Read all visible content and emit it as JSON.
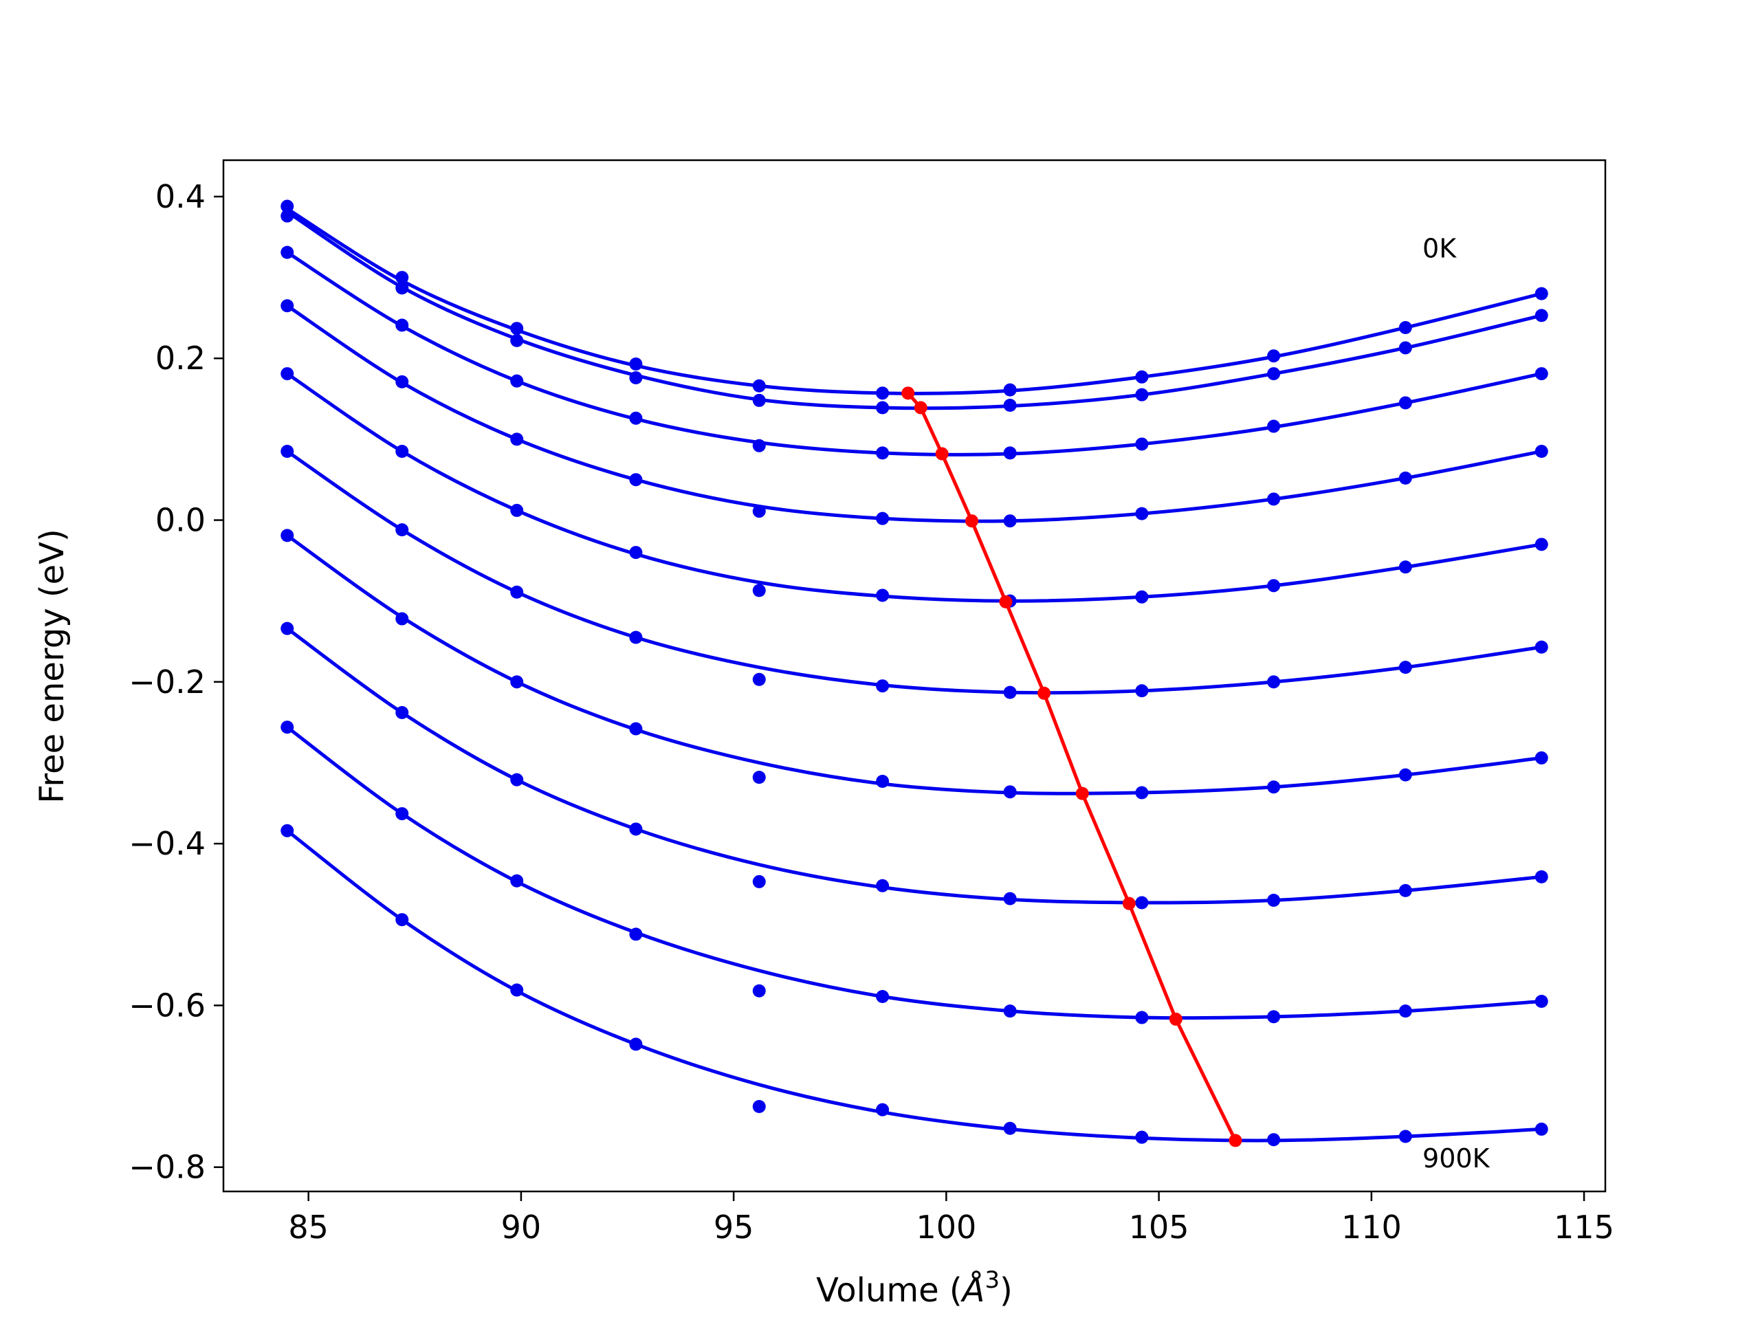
{
  "chart_data": {
    "type": "line",
    "title": "",
    "xlabel": "Volume (Å³)",
    "xlabel_parts": {
      "text": "Volume (",
      "italic": "Å",
      "sup": "3",
      "close": ")"
    },
    "ylabel": "Free energy (eV)",
    "xlim": [
      83,
      115.5
    ],
    "ylim": [
      -0.83,
      0.445
    ],
    "xticks": [
      85,
      90,
      95,
      100,
      105,
      110,
      115
    ],
    "xtick_labels": [
      "85",
      "90",
      "95",
      "100",
      "105",
      "110",
      "115"
    ],
    "yticks": [
      -0.8,
      -0.6,
      -0.4,
      -0.2,
      0.0,
      0.2,
      0.4
    ],
    "ytick_labels": [
      "−0.8",
      "−0.6",
      "−0.4",
      "−0.2",
      "0.0",
      "0.2",
      "0.4"
    ],
    "grid": false,
    "annotations": [
      {
        "text": "0K",
        "x": 111.2,
        "y": 0.335
      },
      {
        "text": "900K",
        "x": 111.2,
        "y": -0.79
      }
    ],
    "x": [
      84.5,
      87.2,
      89.9,
      92.7,
      95.6,
      98.5,
      101.5,
      104.6,
      107.7,
      110.8,
      114.0
    ],
    "series_color": "#0000ee",
    "series": [
      {
        "values": [
          0.388,
          0.3,
          0.237,
          0.193,
          0.166,
          0.157,
          0.161,
          0.177,
          0.203,
          0.238,
          0.28
        ],
        "fit": [
          0.385,
          0.296,
          0.235,
          0.191,
          0.166,
          0.157,
          0.16,
          0.177,
          0.202,
          0.238,
          0.28
        ]
      },
      {
        "values": [
          0.376,
          0.287,
          0.222,
          0.176,
          0.148,
          0.139,
          0.142,
          0.155,
          0.181,
          0.213,
          0.253
        ],
        "fit": [
          0.381,
          0.288,
          0.224,
          0.179,
          0.149,
          0.139,
          0.141,
          0.155,
          0.181,
          0.213,
          0.253
        ]
      },
      {
        "values": [
          0.331,
          0.241,
          0.172,
          0.126,
          0.092,
          0.083,
          0.083,
          0.094,
          0.116,
          0.145,
          0.181
        ],
        "fit": [
          0.331,
          0.24,
          0.172,
          0.125,
          0.096,
          0.083,
          0.082,
          0.094,
          0.115,
          0.145,
          0.181
        ]
      },
      {
        "values": [
          0.265,
          0.171,
          0.1,
          0.05,
          0.011,
          0.002,
          -0.001,
          0.008,
          0.026,
          0.052,
          0.085
        ],
        "fit": [
          0.265,
          0.17,
          0.1,
          0.05,
          0.017,
          0.002,
          -0.001,
          0.008,
          0.026,
          0.052,
          0.085
        ]
      },
      {
        "values": [
          0.181,
          0.085,
          0.012,
          -0.04,
          -0.087,
          -0.093,
          -0.1,
          -0.095,
          -0.081,
          -0.058,
          -0.03
        ],
        "fit": [
          0.181,
          0.085,
          0.012,
          -0.042,
          -0.077,
          -0.094,
          -0.1,
          -0.095,
          -0.081,
          -0.058,
          -0.03
        ]
      },
      {
        "values": [
          0.085,
          -0.012,
          -0.089,
          -0.145,
          -0.197,
          -0.205,
          -0.213,
          -0.211,
          -0.2,
          -0.182,
          -0.157
        ],
        "fit": [
          0.085,
          -0.012,
          -0.089,
          -0.145,
          -0.182,
          -0.204,
          -0.213,
          -0.211,
          -0.2,
          -0.182,
          -0.157
        ]
      },
      {
        "values": [
          -0.019,
          -0.122,
          -0.2,
          -0.258,
          -0.318,
          -0.323,
          -0.336,
          -0.337,
          -0.33,
          -0.315,
          -0.294
        ],
        "fit": [
          -0.019,
          -0.12,
          -0.2,
          -0.259,
          -0.3,
          -0.326,
          -0.337,
          -0.337,
          -0.33,
          -0.315,
          -0.294
        ]
      },
      {
        "values": [
          -0.134,
          -0.238,
          -0.321,
          -0.382,
          -0.447,
          -0.452,
          -0.468,
          -0.473,
          -0.47,
          -0.458,
          -0.441
        ],
        "fit": [
          -0.134,
          -0.238,
          -0.321,
          -0.382,
          -0.426,
          -0.454,
          -0.469,
          -0.473,
          -0.47,
          -0.458,
          -0.441
        ]
      },
      {
        "values": [
          -0.256,
          -0.363,
          -0.446,
          -0.512,
          -0.582,
          -0.589,
          -0.607,
          -0.615,
          -0.614,
          -0.607,
          -0.595
        ],
        "fit": [
          -0.256,
          -0.363,
          -0.447,
          -0.51,
          -0.557,
          -0.589,
          -0.607,
          -0.615,
          -0.614,
          -0.607,
          -0.595
        ]
      },
      {
        "values": [
          -0.384,
          -0.494,
          -0.581,
          -0.648,
          -0.725,
          -0.729,
          -0.752,
          -0.763,
          -0.766,
          -0.762,
          -0.753
        ],
        "fit": [
          -0.384,
          -0.494,
          -0.582,
          -0.648,
          -0.698,
          -0.732,
          -0.753,
          -0.764,
          -0.767,
          -0.762,
          -0.753
        ]
      }
    ],
    "minimum_line": {
      "color": "#ff0000",
      "x": [
        99.1,
        99.4,
        99.9,
        100.6,
        101.4,
        102.3,
        103.2,
        104.3,
        105.4,
        106.8
      ],
      "y": [
        0.157,
        0.139,
        0.082,
        -0.001,
        -0.101,
        -0.214,
        -0.338,
        -0.474,
        -0.617,
        -0.767
      ]
    }
  }
}
